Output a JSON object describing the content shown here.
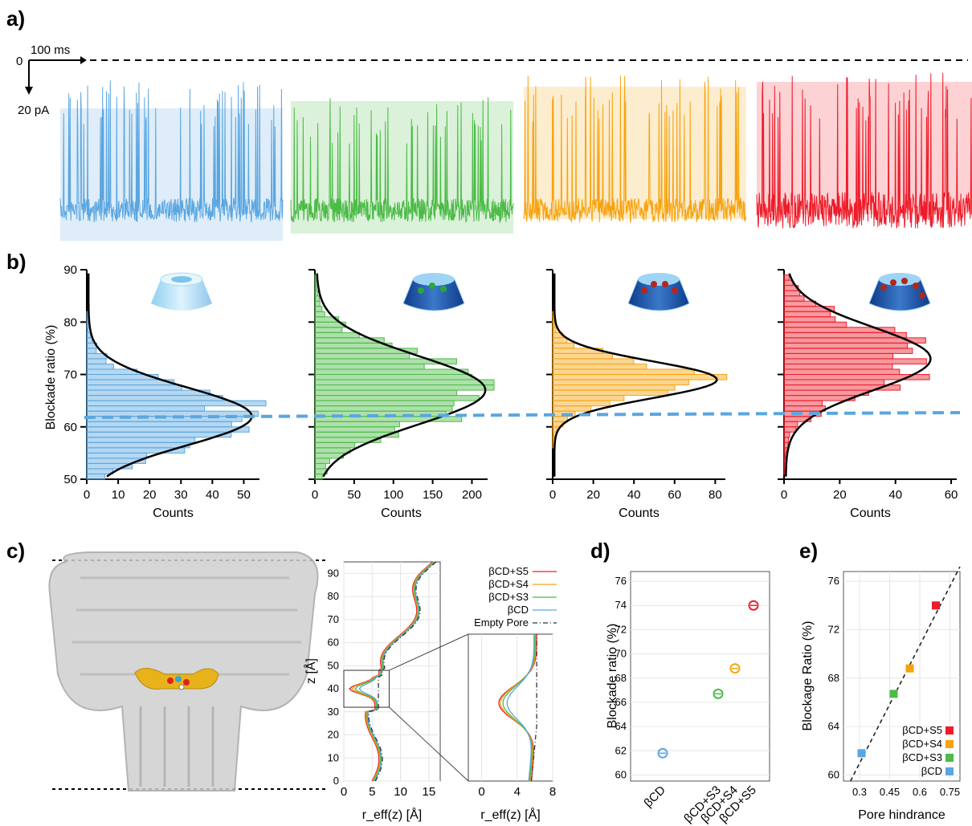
{
  "panels": {
    "a": "a)",
    "b": "b)",
    "c": "c)",
    "d": "d)",
    "e": "e)"
  },
  "trace_scale": {
    "zero": "0",
    "time": "100 ms",
    "current": "20 pA"
  },
  "colors": {
    "bcd": "#5aa6e0",
    "s3": "#4cbb47",
    "s4": "#f7a30f",
    "s5": "#ee1c2a",
    "fit": "#000000",
    "guide": "#5aa6e0"
  },
  "histograms": {
    "ylabel": "Blockade ratio (%)",
    "xlabel": "Counts",
    "y_ticks": [
      "50",
      "60",
      "70",
      "80",
      "90"
    ],
    "guide_level": 62,
    "x_ticks": [
      [
        "0",
        "10",
        "20",
        "30",
        "40",
        "50"
      ],
      [
        "0",
        "50",
        "100",
        "150",
        "200"
      ],
      [
        "0",
        "20",
        "40",
        "60",
        "80"
      ],
      [
        "0",
        "20",
        "40",
        "60"
      ]
    ]
  },
  "pore_plot": {
    "ylabel": "z [Å]",
    "xlabel": "r_eff(z) [Å]",
    "y_ticks": [
      "0",
      "10",
      "20",
      "30",
      "40",
      "50",
      "60",
      "70",
      "80",
      "90"
    ],
    "x_ticks": [
      "0",
      "5",
      "10",
      "15"
    ],
    "zoom_x_ticks": [
      "0",
      "4",
      "8"
    ],
    "legend": [
      "βCD+S5",
      "βCD+S4",
      "βCD+S3",
      "βCD",
      "Empty Pore"
    ]
  },
  "chart_data": [
    {
      "type": "scatter",
      "ylabel": "Blockade ratio (%)",
      "categories": [
        "βCD",
        "βCD+S3",
        "βCD+S4",
        "βCD+S5"
      ],
      "values": [
        61.8,
        66.7,
        68.8,
        74.0
      ],
      "y_ticks": [
        "60",
        "62",
        "64",
        "66",
        "68",
        "70",
        "72",
        "74",
        "76"
      ],
      "ylim": [
        59.5,
        76.8
      ]
    },
    {
      "type": "scatter",
      "xlabel": "Pore hindrance",
      "ylabel": "Blockage Ratio (%)",
      "x": [
        0.31,
        0.47,
        0.55,
        0.68
      ],
      "y": [
        61.8,
        66.7,
        68.8,
        74.0
      ],
      "series": [
        {
          "name": "βCD+S5"
        },
        {
          "name": "βCD+S4"
        },
        {
          "name": "βCD+S3"
        },
        {
          "name": "βCD"
        }
      ],
      "x_ticks": [
        "0.3",
        "0.45",
        "0.6",
        "0.75"
      ],
      "y_ticks": [
        "60",
        "64",
        "68",
        "72",
        "76"
      ],
      "xlim": [
        0.22,
        0.8
      ],
      "ylim": [
        59.5,
        76.8
      ]
    }
  ]
}
